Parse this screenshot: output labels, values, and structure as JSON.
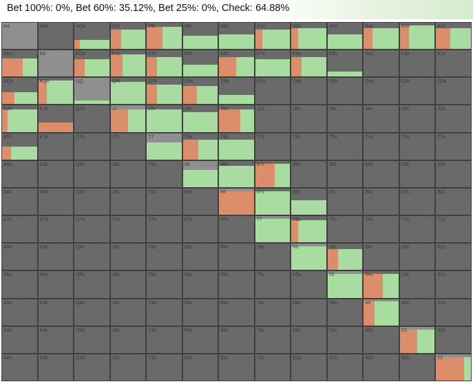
{
  "summary": "Bet 100%: 0%, Bet 60%: 35.12%, Bet 25%: 0%, Check: 64.88%",
  "colors": {
    "check": "#a9dca0",
    "bet60": "#dc8e6a",
    "cell_bg": "#6a6a6a",
    "cell_bg_pair": "#8f8f8f",
    "grid_line": "#3f3f3f"
  },
  "chart_data": {
    "type": "heatmap",
    "title": "Bet 100%: 0%, Bet 60%: 35.12%, Bet 25%: 0%, Check: 64.88%",
    "legend": [
      {
        "name": "Bet 100%",
        "value": 0
      },
      {
        "name": "Bet 60%",
        "value": 35.12
      },
      {
        "name": "Bet 25%",
        "value": 0
      },
      {
        "name": "Check",
        "value": 64.88
      }
    ],
    "ranks": [
      "A",
      "K",
      "Q",
      "J",
      "T",
      "9",
      "8",
      "7",
      "6",
      "5",
      "4",
      "3",
      "2"
    ],
    "hands": [
      [
        "AA",
        "AKs",
        "AQs",
        "AJs",
        "ATs",
        "A9s",
        "A8s",
        "A7s",
        "A6s",
        "A5s",
        "A4s",
        "A3s",
        "A2s"
      ],
      [
        "AKo",
        "KK",
        "KQs",
        "KJs",
        "KTs",
        "K9s",
        "K8s",
        "K7s",
        "K6s",
        "K5s",
        "K4s",
        "K3s",
        "K2s"
      ],
      [
        "AQo",
        "KQo",
        "QQ",
        "QJs",
        "QTs",
        "Q9s",
        "Q8s",
        "Q7s",
        "Q6s",
        "Q5s",
        "Q4s",
        "Q3s",
        "Q2s"
      ],
      [
        "AJo",
        "KJo",
        "QJo",
        "JJ",
        "JTs",
        "J9s",
        "J8s",
        "J7s",
        "J6s",
        "J5s",
        "J4s",
        "J3s",
        "J2s"
      ],
      [
        "ATo",
        "KTo",
        "QTo",
        "JTo",
        "TT",
        "T9s",
        "T8s",
        "T7s",
        "T6s",
        "T5s",
        "T4s",
        "T3s",
        "T2s"
      ],
      [
        "A9o",
        "K9o",
        "Q9o",
        "J9o",
        "T9o",
        "99",
        "98s",
        "97s",
        "96s",
        "95s",
        "94s",
        "93s",
        "92s"
      ],
      [
        "A8o",
        "K8o",
        "Q8o",
        "J8o",
        "T8o",
        "98o",
        "88",
        "87s",
        "86s",
        "85s",
        "84s",
        "83s",
        "82s"
      ],
      [
        "A7o",
        "K7o",
        "Q7o",
        "J7o",
        "T7o",
        "97o",
        "87o",
        "77",
        "76s",
        "75s",
        "74s",
        "73s",
        "72s"
      ],
      [
        "A6o",
        "K6o",
        "Q6o",
        "J6o",
        "T6o",
        "96o",
        "86o",
        "76o",
        "66",
        "65s",
        "64s",
        "63s",
        "62s"
      ],
      [
        "A5o",
        "K5o",
        "Q5o",
        "J5o",
        "T5o",
        "95o",
        "85o",
        "75o",
        "65o",
        "55",
        "54s",
        "53s",
        "52s"
      ],
      [
        "A4o",
        "K4o",
        "Q4o",
        "J4o",
        "T4o",
        "94o",
        "84o",
        "74o",
        "64o",
        "54o",
        "44",
        "43s",
        "42s"
      ],
      [
        "A3o",
        "K3o",
        "Q3o",
        "J3o",
        "T3o",
        "93o",
        "83o",
        "73o",
        "63o",
        "53o",
        "43o",
        "33",
        "32s"
      ],
      [
        "A2o",
        "K2o",
        "Q2o",
        "J2o",
        "T2o",
        "92o",
        "82o",
        "72o",
        "62o",
        "52o",
        "42o",
        "32o",
        "22"
      ]
    ],
    "frequency_unit": "fraction of combos (0-1)",
    "frequencies": [
      [
        [
          0.0,
          0.0,
          0.0
        ],
        [
          0.0,
          0.0,
          0.0
        ],
        [
          0.35,
          0.15,
          0.85
        ],
        [
          0.75,
          0.3,
          0.7
        ],
        [
          0.85,
          0.45,
          0.55
        ],
        [
          0.5,
          0.0,
          1.0
        ],
        [
          0.55,
          0.0,
          1.0
        ],
        [
          0.75,
          0.2,
          0.8
        ],
        [
          0.8,
          0.2,
          0.8
        ],
        [
          0.55,
          0.0,
          1.0
        ],
        [
          0.8,
          0.25,
          0.75
        ],
        [
          0.9,
          0.25,
          0.75
        ],
        [
          0.8,
          0.4,
          0.6
        ]
      ],
      [
        [
          0.7,
          0.6,
          0.4
        ],
        [
          0.0,
          0.0,
          0.0
        ],
        [
          0.65,
          0.3,
          0.7
        ],
        [
          0.85,
          0.35,
          0.65
        ],
        [
          0.75,
          0.3,
          0.7
        ],
        [
          0.45,
          0.0,
          1.0
        ],
        [
          0.75,
          0.5,
          0.5
        ],
        [
          0.65,
          0.0,
          1.0
        ],
        [
          0.75,
          0.3,
          0.7
        ],
        [
          0.2,
          0.0,
          1.0
        ],
        [
          0.0,
          0.0,
          0.0
        ],
        [
          0.0,
          0.0,
          0.0
        ],
        [
          0.0,
          0.0,
          0.0
        ]
      ],
      [
        [
          0.45,
          0.35,
          0.65
        ],
        [
          0.9,
          0.25,
          0.75
        ],
        [
          0.15,
          0.0,
          1.0
        ],
        [
          0.85,
          0.0,
          1.0
        ],
        [
          0.75,
          0.3,
          0.7
        ],
        [
          0.7,
          0.4,
          0.6
        ],
        [
          0.35,
          0.0,
          1.0
        ],
        [
          0.0,
          0.0,
          0.0
        ],
        [
          0.0,
          0.0,
          0.0
        ],
        [
          0.0,
          0.0,
          0.0
        ],
        [
          0.0,
          0.0,
          0.0
        ],
        [
          0.0,
          0.0,
          0.0
        ],
        [
          0.0,
          0.0,
          0.0
        ]
      ],
      [
        [
          0.85,
          0.15,
          0.85
        ],
        [
          0.35,
          1.0,
          0.0
        ],
        [
          0.0,
          0.0,
          0.0
        ],
        [
          0.85,
          0.5,
          0.5
        ],
        [
          0.85,
          0.0,
          1.0
        ],
        [
          0.75,
          0.0,
          1.0
        ],
        [
          0.85,
          0.6,
          0.4
        ],
        [
          0.0,
          0.0,
          0.0
        ],
        [
          0.0,
          0.0,
          0.0
        ],
        [
          0.0,
          0.0,
          0.0
        ],
        [
          0.0,
          0.0,
          0.0
        ],
        [
          0.0,
          0.0,
          0.0
        ],
        [
          0.0,
          0.0,
          0.0
        ]
      ],
      [
        [
          0.5,
          0.25,
          0.75
        ],
        [
          0.0,
          0.0,
          0.0
        ],
        [
          0.0,
          0.0,
          0.0
        ],
        [
          0.0,
          0.0,
          0.0
        ],
        [
          0.65,
          0.0,
          1.0
        ],
        [
          0.75,
          0.45,
          0.55
        ],
        [
          0.75,
          0.0,
          1.0
        ],
        [
          0.0,
          0.0,
          0.0
        ],
        [
          0.0,
          0.0,
          0.0
        ],
        [
          0.0,
          0.0,
          0.0
        ],
        [
          0.0,
          0.0,
          0.0
        ],
        [
          0.0,
          0.0,
          0.0
        ],
        [
          0.0,
          0.0,
          0.0
        ]
      ],
      [
        [
          0.0,
          0.0,
          0.0
        ],
        [
          0.0,
          0.0,
          0.0
        ],
        [
          0.0,
          0.0,
          0.0
        ],
        [
          0.0,
          0.0,
          0.0
        ],
        [
          0.0,
          0.0,
          0.0
        ],
        [
          0.65,
          0.0,
          1.0
        ],
        [
          0.8,
          0.0,
          1.0
        ],
        [
          0.9,
          0.55,
          0.45
        ],
        [
          0.0,
          0.0,
          0.0
        ],
        [
          0.0,
          0.0,
          0.0
        ],
        [
          0.0,
          0.0,
          0.0
        ],
        [
          0.0,
          0.0,
          0.0
        ],
        [
          0.0,
          0.0,
          0.0
        ]
      ],
      [
        [
          0.0,
          0.0,
          0.0
        ],
        [
          0.0,
          0.0,
          0.0
        ],
        [
          0.0,
          0.0,
          0.0
        ],
        [
          0.0,
          0.0,
          0.0
        ],
        [
          0.0,
          0.0,
          0.0
        ],
        [
          0.0,
          0.0,
          0.0
        ],
        [
          0.9,
          1.0,
          0.0
        ],
        [
          0.9,
          0.0,
          1.0
        ],
        [
          0.55,
          0.0,
          1.0
        ],
        [
          0.0,
          0.0,
          0.0
        ],
        [
          0.0,
          0.0,
          0.0
        ],
        [
          0.0,
          0.0,
          0.0
        ],
        [
          0.0,
          0.0,
          0.0
        ]
      ],
      [
        [
          0.0,
          0.0,
          0.0
        ],
        [
          0.0,
          0.0,
          0.0
        ],
        [
          0.0,
          0.0,
          0.0
        ],
        [
          0.0,
          0.0,
          0.0
        ],
        [
          0.0,
          0.0,
          0.0
        ],
        [
          0.0,
          0.0,
          0.0
        ],
        [
          0.0,
          0.0,
          0.0
        ],
        [
          0.9,
          0.0,
          1.0
        ],
        [
          0.85,
          0.2,
          0.8
        ],
        [
          0.0,
          0.0,
          0.0
        ],
        [
          0.0,
          0.0,
          0.0
        ],
        [
          0.0,
          0.0,
          0.0
        ],
        [
          0.0,
          0.0,
          0.0
        ]
      ],
      [
        [
          0.0,
          0.0,
          0.0
        ],
        [
          0.0,
          0.0,
          0.0
        ],
        [
          0.0,
          0.0,
          0.0
        ],
        [
          0.0,
          0.0,
          0.0
        ],
        [
          0.0,
          0.0,
          0.0
        ],
        [
          0.0,
          0.0,
          0.0
        ],
        [
          0.0,
          0.0,
          0.0
        ],
        [
          0.0,
          0.0,
          0.0
        ],
        [
          0.9,
          0.0,
          1.0
        ],
        [
          0.8,
          0.3,
          0.7
        ],
        [
          0.0,
          0.0,
          0.0
        ],
        [
          0.0,
          0.0,
          0.0
        ],
        [
          0.0,
          0.0,
          0.0
        ]
      ],
      [
        [
          0.0,
          0.0,
          0.0
        ],
        [
          0.0,
          0.0,
          0.0
        ],
        [
          0.0,
          0.0,
          0.0
        ],
        [
          0.0,
          0.0,
          0.0
        ],
        [
          0.0,
          0.0,
          0.0
        ],
        [
          0.0,
          0.0,
          0.0
        ],
        [
          0.0,
          0.0,
          0.0
        ],
        [
          0.0,
          0.0,
          0.0
        ],
        [
          0.0,
          0.0,
          0.0
        ],
        [
          0.9,
          0.0,
          1.0
        ],
        [
          0.9,
          0.55,
          0.45
        ],
        [
          0.0,
          0.0,
          0.0
        ],
        [
          0.0,
          0.0,
          0.0
        ]
      ],
      [
        [
          0.0,
          0.0,
          0.0
        ],
        [
          0.0,
          0.0,
          0.0
        ],
        [
          0.0,
          0.0,
          0.0
        ],
        [
          0.0,
          0.0,
          0.0
        ],
        [
          0.0,
          0.0,
          0.0
        ],
        [
          0.0,
          0.0,
          0.0
        ],
        [
          0.0,
          0.0,
          0.0
        ],
        [
          0.0,
          0.0,
          0.0
        ],
        [
          0.0,
          0.0,
          0.0
        ],
        [
          0.0,
          0.0,
          0.0
        ],
        [
          0.9,
          0.3,
          0.7
        ],
        [
          0.0,
          0.0,
          0.0
        ],
        [
          0.0,
          0.0,
          0.0
        ]
      ],
      [
        [
          0.0,
          0.0,
          0.0
        ],
        [
          0.0,
          0.0,
          0.0
        ],
        [
          0.0,
          0.0,
          0.0
        ],
        [
          0.0,
          0.0,
          0.0
        ],
        [
          0.0,
          0.0,
          0.0
        ],
        [
          0.0,
          0.0,
          0.0
        ],
        [
          0.0,
          0.0,
          0.0
        ],
        [
          0.0,
          0.0,
          0.0
        ],
        [
          0.0,
          0.0,
          0.0
        ],
        [
          0.0,
          0.0,
          0.0
        ],
        [
          0.0,
          0.0,
          0.0
        ],
        [
          0.9,
          0.5,
          0.5
        ],
        [
          0.0,
          0.0,
          0.0
        ]
      ],
      [
        [
          0.0,
          0.0,
          0.0
        ],
        [
          0.0,
          0.0,
          0.0
        ],
        [
          0.0,
          0.0,
          0.0
        ],
        [
          0.0,
          0.0,
          0.0
        ],
        [
          0.0,
          0.0,
          0.0
        ],
        [
          0.0,
          0.0,
          0.0
        ],
        [
          0.0,
          0.0,
          0.0
        ],
        [
          0.0,
          0.0,
          0.0
        ],
        [
          0.0,
          0.0,
          0.0
        ],
        [
          0.0,
          0.0,
          0.0
        ],
        [
          0.0,
          0.0,
          0.0
        ],
        [
          0.0,
          0.0,
          0.0
        ],
        [
          0.9,
          0.8,
          0.2
        ]
      ]
    ],
    "frequency_fields": [
      "played_fraction",
      "bet60_share",
      "check_share"
    ]
  }
}
